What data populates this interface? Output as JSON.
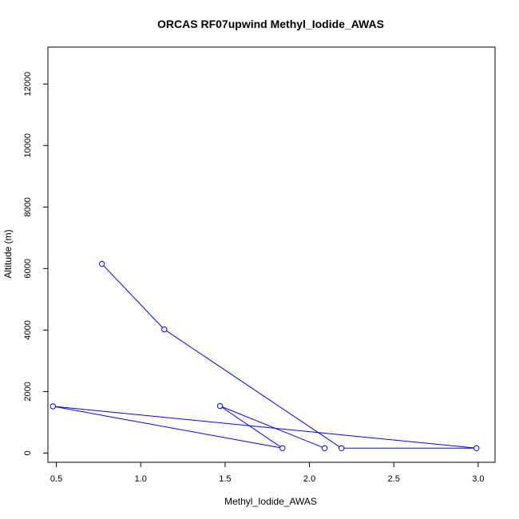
{
  "chart_data": {
    "type": "line",
    "title": "ORCAS RF07upwind Methyl_Iodide_AWAS",
    "xlabel": "Methyl_Iodide_AWAS",
    "ylabel": "Altitude (m)",
    "xlim": [
      0.45,
      3.1
    ],
    "ylim": [
      -300,
      13200
    ],
    "x_ticks": [
      0.5,
      1.0,
      1.5,
      2.0,
      2.5,
      3.0
    ],
    "x_tick_labels": [
      "0.5",
      "1.0",
      "1.5",
      "2.0",
      "2.5",
      "3.0"
    ],
    "y_ticks": [
      0,
      2000,
      4000,
      6000,
      8000,
      10000,
      12000
    ],
    "y_tick_labels": [
      "0",
      "2000",
      "4000",
      "6000",
      "8000",
      "10000",
      "12000"
    ],
    "grid": false,
    "series": [
      {
        "color": "#0000ff",
        "marker": "open-circle",
        "x": [
          0.77,
          1.14,
          2.19,
          2.99,
          0.48,
          1.84,
          1.47,
          2.09
        ],
        "y": [
          6150,
          4020,
          160,
          160,
          1520,
          160,
          1530,
          160
        ]
      }
    ]
  }
}
